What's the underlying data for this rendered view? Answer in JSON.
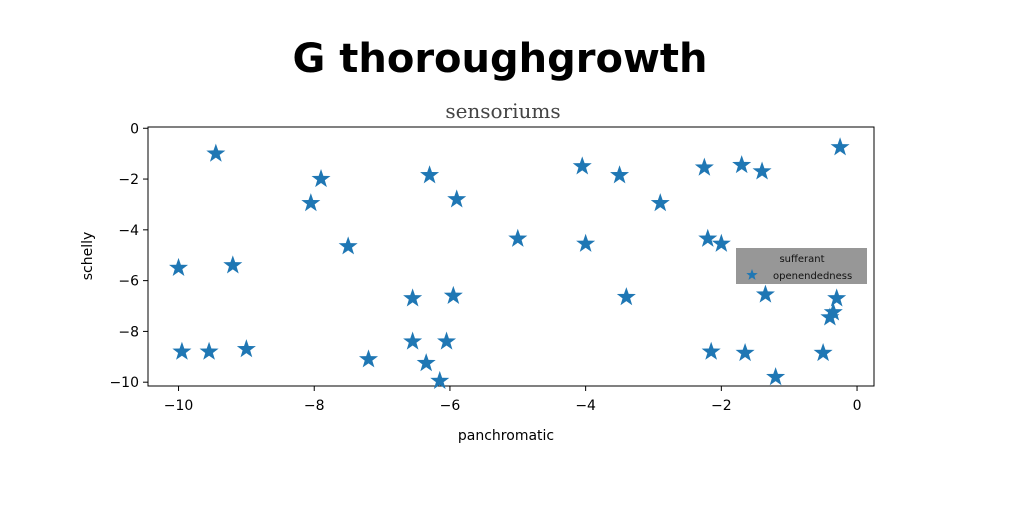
{
  "chart_data": {
    "type": "scatter",
    "title": "G thoroughgrowth",
    "subtitle": "sensoriums",
    "xlabel": "panchromatic",
    "ylabel": "schelly",
    "xlim": [
      -10.45,
      0.25
    ],
    "ylim": [
      -10.15,
      0.05
    ],
    "xticks": [
      -10,
      -8,
      -6,
      -4,
      -2,
      0
    ],
    "yticks": [
      0,
      -2,
      -4,
      -6,
      -8,
      -10
    ],
    "xtick_labels": [
      "−10",
      "−8",
      "−6",
      "−4",
      "−2",
      "0"
    ],
    "ytick_labels": [
      "0",
      "−2",
      "−4",
      "−6",
      "−8",
      "−10"
    ],
    "grid": false,
    "marker": "star",
    "color": "#1f77b4",
    "legend": {
      "title": "sufferant",
      "entries": [
        "openendedness"
      ],
      "placement": "center-right",
      "background": "#8c8c8c"
    },
    "series": [
      {
        "name": "openendedness",
        "points": [
          {
            "x": -9.45,
            "y": -1.0
          },
          {
            "x": -10.0,
            "y": -5.5
          },
          {
            "x": -9.2,
            "y": -5.4
          },
          {
            "x": -9.95,
            "y": -8.8
          },
          {
            "x": -9.55,
            "y": -8.8
          },
          {
            "x": -9.0,
            "y": -8.7
          },
          {
            "x": -8.05,
            "y": -2.95
          },
          {
            "x": -7.9,
            "y": -2.0
          },
          {
            "x": -7.5,
            "y": -4.65
          },
          {
            "x": -7.2,
            "y": -9.1
          },
          {
            "x": -6.55,
            "y": -6.7
          },
          {
            "x": -6.55,
            "y": -8.4
          },
          {
            "x": -6.35,
            "y": -9.25
          },
          {
            "x": -6.3,
            "y": -1.85
          },
          {
            "x": -6.15,
            "y": -9.95
          },
          {
            "x": -6.05,
            "y": -8.4
          },
          {
            "x": -5.95,
            "y": -6.6
          },
          {
            "x": -5.9,
            "y": -2.8
          },
          {
            "x": -5.0,
            "y": -4.35
          },
          {
            "x": -4.05,
            "y": -1.5
          },
          {
            "x": -4.0,
            "y": -4.55
          },
          {
            "x": -3.5,
            "y": -1.85
          },
          {
            "x": -3.4,
            "y": -6.65
          },
          {
            "x": -2.9,
            "y": -2.95
          },
          {
            "x": -2.25,
            "y": -1.55
          },
          {
            "x": -2.2,
            "y": -4.35
          },
          {
            "x": -2.15,
            "y": -8.8
          },
          {
            "x": -2.0,
            "y": -4.55
          },
          {
            "x": -1.7,
            "y": -1.45
          },
          {
            "x": -1.65,
            "y": -8.85
          },
          {
            "x": -1.4,
            "y": -1.7
          },
          {
            "x": -1.35,
            "y": -6.55
          },
          {
            "x": -1.2,
            "y": -9.8
          },
          {
            "x": -0.5,
            "y": -8.85
          },
          {
            "x": -0.4,
            "y": -7.45
          },
          {
            "x": -0.35,
            "y": -7.25
          },
          {
            "x": -0.3,
            "y": -6.7
          },
          {
            "x": -0.25,
            "y": -0.75
          }
        ]
      }
    ]
  }
}
